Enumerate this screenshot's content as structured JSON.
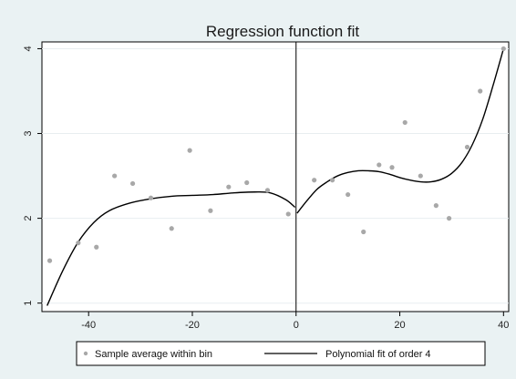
{
  "chart_data": {
    "type": "scatter",
    "title": "Regression function fit",
    "xlabel": "",
    "ylabel": "",
    "xlim": [
      -49,
      41
    ],
    "ylim": [
      0.9,
      4.08
    ],
    "x_ticks": [
      -40,
      -20,
      0,
      20,
      40
    ],
    "y_ticks": [
      1,
      2,
      3,
      4
    ],
    "grid": true,
    "cutoff_line_x": 0,
    "legend_position": "bottom",
    "colors": {
      "page_background": "#eaf2f3",
      "plot_background": "#ffffff",
      "points": "#a8a8a8",
      "fit_line": "#000000",
      "gridline": "#e8eef0"
    },
    "series": [
      {
        "name": "Sample average within bin",
        "kind": "scatter",
        "points": [
          {
            "x": -47.5,
            "y": 1.5
          },
          {
            "x": -42.0,
            "y": 1.71
          },
          {
            "x": -38.5,
            "y": 1.66
          },
          {
            "x": -35.0,
            "y": 2.5
          },
          {
            "x": -31.5,
            "y": 2.41
          },
          {
            "x": -28.0,
            "y": 2.24
          },
          {
            "x": -24.0,
            "y": 1.88
          },
          {
            "x": -20.5,
            "y": 2.8
          },
          {
            "x": -16.5,
            "y": 2.09
          },
          {
            "x": -13.0,
            "y": 2.37
          },
          {
            "x": -9.5,
            "y": 2.42
          },
          {
            "x": -5.5,
            "y": 2.33
          },
          {
            "x": -1.5,
            "y": 2.05
          },
          {
            "x": 3.5,
            "y": 2.45
          },
          {
            "x": 7.0,
            "y": 2.45
          },
          {
            "x": 10.0,
            "y": 2.28
          },
          {
            "x": 13.0,
            "y": 1.84
          },
          {
            "x": 16.0,
            "y": 2.63
          },
          {
            "x": 18.5,
            "y": 2.6
          },
          {
            "x": 21.0,
            "y": 3.13
          },
          {
            "x": 24.0,
            "y": 2.5
          },
          {
            "x": 27.0,
            "y": 2.15
          },
          {
            "x": 29.5,
            "y": 2.0
          },
          {
            "x": 33.0,
            "y": 2.84
          },
          {
            "x": 35.5,
            "y": 3.5
          },
          {
            "x": 40.0,
            "y": 4.0
          }
        ]
      },
      {
        "name": "Polynomial fit of order 4",
        "kind": "line",
        "segments": [
          [
            {
              "x": -48,
              "y": 0.97
            },
            {
              "x": -45,
              "y": 1.38
            },
            {
              "x": -42,
              "y": 1.72
            },
            {
              "x": -39,
              "y": 1.95
            },
            {
              "x": -36,
              "y": 2.09
            },
            {
              "x": -32,
              "y": 2.18
            },
            {
              "x": -28,
              "y": 2.23
            },
            {
              "x": -24,
              "y": 2.26
            },
            {
              "x": -20,
              "y": 2.27
            },
            {
              "x": -16,
              "y": 2.28
            },
            {
              "x": -12,
              "y": 2.3
            },
            {
              "x": -8,
              "y": 2.31
            },
            {
              "x": -5,
              "y": 2.3
            },
            {
              "x": -2,
              "y": 2.22
            },
            {
              "x": -0.2,
              "y": 2.13
            }
          ],
          [
            {
              "x": 0.2,
              "y": 2.06
            },
            {
              "x": 2,
              "y": 2.2
            },
            {
              "x": 4,
              "y": 2.34
            },
            {
              "x": 6,
              "y": 2.43
            },
            {
              "x": 8,
              "y": 2.5
            },
            {
              "x": 10,
              "y": 2.54
            },
            {
              "x": 12,
              "y": 2.56
            },
            {
              "x": 14,
              "y": 2.56
            },
            {
              "x": 16,
              "y": 2.55
            },
            {
              "x": 18,
              "y": 2.52
            },
            {
              "x": 20,
              "y": 2.48
            },
            {
              "x": 22,
              "y": 2.45
            },
            {
              "x": 24,
              "y": 2.43
            },
            {
              "x": 26,
              "y": 2.43
            },
            {
              "x": 28,
              "y": 2.46
            },
            {
              "x": 30,
              "y": 2.53
            },
            {
              "x": 32,
              "y": 2.66
            },
            {
              "x": 34,
              "y": 2.87
            },
            {
              "x": 36,
              "y": 3.17
            },
            {
              "x": 38,
              "y": 3.57
            },
            {
              "x": 40,
              "y": 4.0
            }
          ]
        ]
      }
    ]
  }
}
